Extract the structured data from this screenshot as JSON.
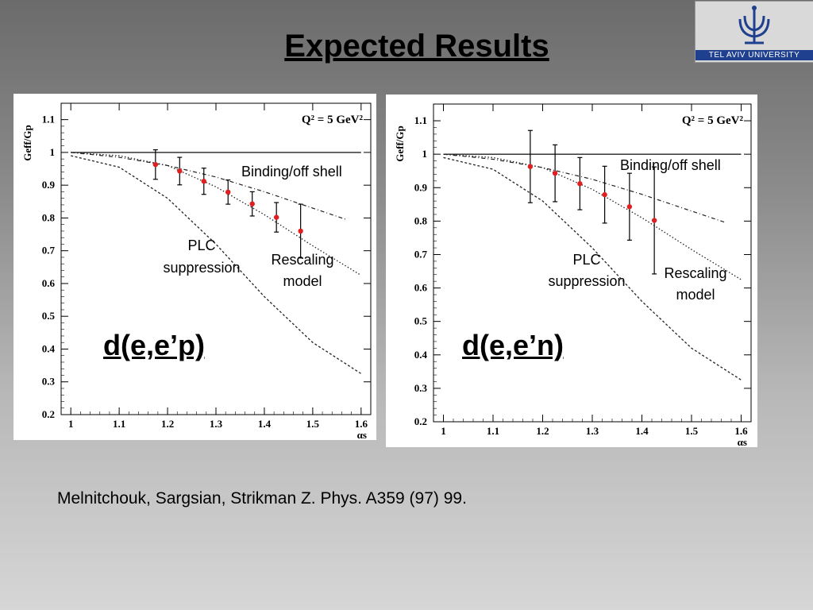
{
  "slide": {
    "title": "Expected Results",
    "citation": "Melnitchouk, Sargsian, Strikman Z. Phys. A359 (97) 99."
  },
  "logo": {
    "text": "TEL AVIV UNIVERSITY",
    "color": "#1f3f8f"
  },
  "chart_data": [
    {
      "type": "line",
      "panel_label": "d(e,e’p)",
      "q2_label": "Q² = 5 GeV²",
      "ylabel": "Geff/Gp",
      "xlabel": "αs",
      "xlim": [
        0.98,
        1.62
      ],
      "ylim": [
        0.2,
        1.15
      ],
      "x_ticks": [
        "1",
        "1.1",
        "1.2",
        "1.3",
        "1.4",
        "1.5",
        "1.6"
      ],
      "y_ticks": [
        "0.2",
        "0.3",
        "0.4",
        "0.5",
        "0.6",
        "0.7",
        "0.8",
        "0.9",
        "1",
        "1.1"
      ],
      "annotations": {
        "binding": "Binding/off shell",
        "plc_1": "PLC",
        "plc_2": "suppression",
        "rescaling_1": "Rescaling",
        "rescaling_2": "model"
      },
      "series": [
        {
          "key": "unity",
          "style": "solid",
          "x": [
            1.0,
            1.6
          ],
          "y": [
            1.0,
            1.0
          ]
        },
        {
          "key": "binding",
          "style": "dashdot",
          "x": [
            1.0,
            1.1,
            1.2,
            1.3,
            1.4,
            1.5,
            1.57
          ],
          "y": [
            1.0,
            0.985,
            0.96,
            0.925,
            0.88,
            0.83,
            0.795
          ]
        },
        {
          "key": "rescaling",
          "style": "dotted",
          "x": [
            1.0,
            1.1,
            1.2,
            1.3,
            1.4,
            1.5,
            1.6
          ],
          "y": [
            1.0,
            0.99,
            0.96,
            0.895,
            0.81,
            0.715,
            0.625
          ]
        },
        {
          "key": "plc",
          "style": "dashed",
          "x": [
            1.0,
            1.1,
            1.2,
            1.3,
            1.4,
            1.5,
            1.6
          ],
          "y": [
            0.99,
            0.955,
            0.86,
            0.72,
            0.56,
            0.42,
            0.325
          ]
        }
      ],
      "points": {
        "x": [
          1.175,
          1.225,
          1.275,
          1.325,
          1.375,
          1.425,
          1.475
        ],
        "y": [
          0.963,
          0.943,
          0.912,
          0.879,
          0.843,
          0.802,
          0.76
        ],
        "err": [
          0.045,
          0.042,
          0.04,
          0.037,
          0.037,
          0.045,
          0.082
        ],
        "color": "#e02020"
      }
    },
    {
      "type": "line",
      "panel_label": "d(e,e’n)",
      "q2_label": "Q² = 5 GeV²",
      "ylabel": "Geff/Gp",
      "xlabel": "αs",
      "xlim": [
        0.98,
        1.62
      ],
      "ylim": [
        0.2,
        1.15
      ],
      "x_ticks": [
        "1",
        "1.1",
        "1.2",
        "1.3",
        "1.4",
        "1.5",
        "1.6"
      ],
      "y_ticks": [
        "0.2",
        "0.3",
        "0.4",
        "0.5",
        "0.6",
        "0.7",
        "0.8",
        "0.9",
        "1",
        "1.1"
      ],
      "annotations": {
        "binding": "Binding/off shell",
        "plc_1": "PLC",
        "plc_2": "suppression",
        "rescaling_1": "Rescaling",
        "rescaling_2": "model"
      },
      "series": [
        {
          "key": "unity",
          "style": "solid",
          "x": [
            1.0,
            1.6
          ],
          "y": [
            1.0,
            1.0
          ]
        },
        {
          "key": "binding",
          "style": "dashdot",
          "x": [
            1.0,
            1.1,
            1.2,
            1.3,
            1.4,
            1.5,
            1.57
          ],
          "y": [
            1.0,
            0.985,
            0.96,
            0.925,
            0.88,
            0.83,
            0.795
          ]
        },
        {
          "key": "rescaling",
          "style": "dotted",
          "x": [
            1.0,
            1.1,
            1.2,
            1.3,
            1.4,
            1.5,
            1.6
          ],
          "y": [
            1.0,
            0.99,
            0.96,
            0.895,
            0.81,
            0.715,
            0.625
          ]
        },
        {
          "key": "plc",
          "style": "dashed",
          "x": [
            1.0,
            1.1,
            1.2,
            1.3,
            1.4,
            1.5,
            1.6
          ],
          "y": [
            0.99,
            0.955,
            0.86,
            0.72,
            0.56,
            0.42,
            0.325
          ]
        }
      ],
      "points": {
        "x": [
          1.175,
          1.225,
          1.275,
          1.325,
          1.375,
          1.425
        ],
        "y": [
          0.963,
          0.943,
          0.912,
          0.879,
          0.843,
          0.802
        ],
        "err": [
          0.108,
          0.085,
          0.078,
          0.085,
          0.1,
          0.16
        ],
        "color": "#e02020"
      }
    }
  ]
}
